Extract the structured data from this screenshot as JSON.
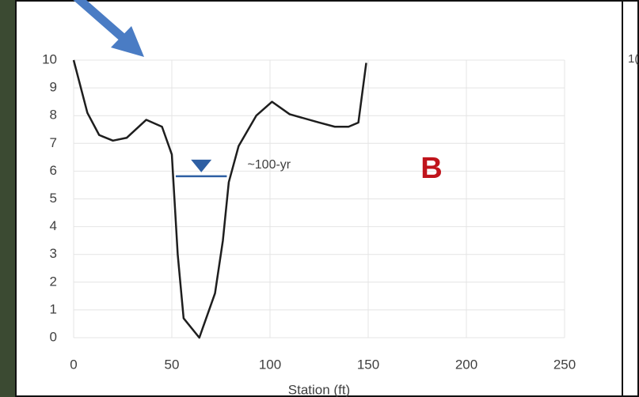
{
  "chart_data": {
    "type": "line",
    "x_label": "Station (ft)",
    "x": [
      0,
      7,
      13,
      20,
      27,
      37,
      45,
      50,
      53,
      56,
      64,
      72,
      76,
      79,
      84,
      93,
      101,
      110,
      125,
      133,
      140,
      145,
      149
    ],
    "series": [
      {
        "color": "#1e1e1e",
        "values": [
          10,
          8.1,
          7.3,
          7.1,
          7.2,
          7.85,
          7.6,
          6.6,
          3,
          0.7,
          0,
          1.6,
          3.5,
          5.6,
          6.9,
          8.0,
          8.5,
          8.05,
          7.75,
          7.6,
          7.6,
          7.75,
          9.9
        ]
      }
    ],
    "xlim": [
      0,
      250
    ],
    "xticks": [
      0,
      50,
      100,
      150,
      200,
      250
    ],
    "ylim": [
      0,
      10
    ],
    "yticks": [
      0,
      1,
      2,
      3,
      4,
      5,
      6,
      7,
      8,
      9,
      10
    ],
    "grid": true,
    "water_level": {
      "label": "~100-yr",
      "y": 5.9,
      "x": [
        52,
        78
      ],
      "color": "#2e5fa3"
    },
    "panel_label": {
      "text": "B",
      "color": "#c0141c"
    }
  },
  "cropped_text": "1("
}
